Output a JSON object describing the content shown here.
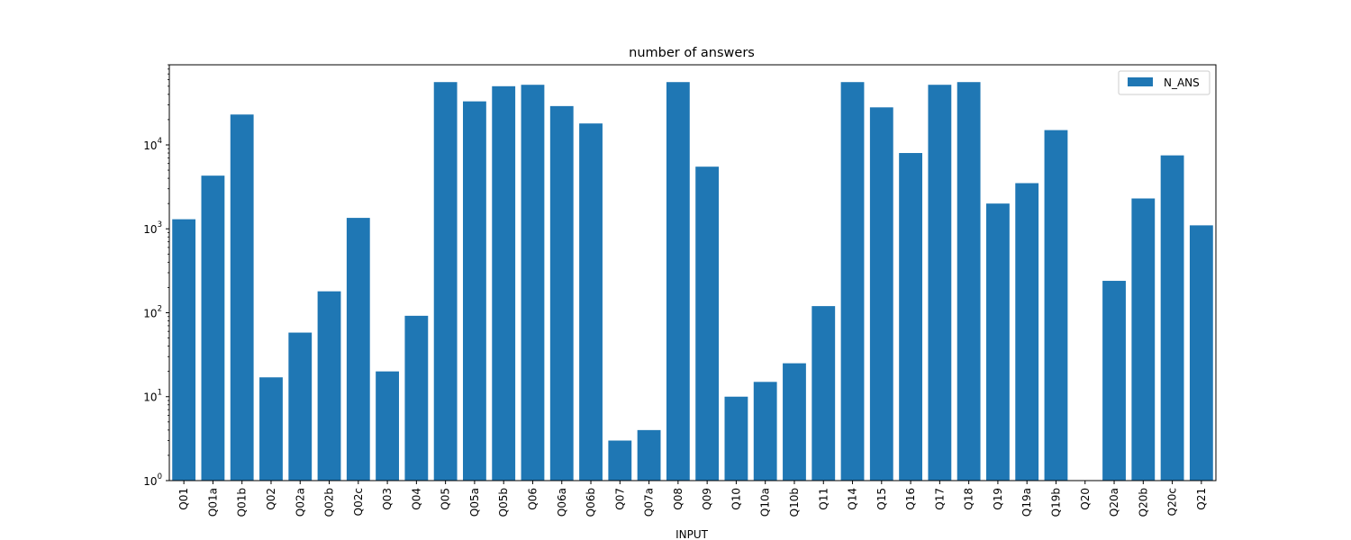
{
  "chart_data": {
    "type": "bar",
    "title": "number of answers",
    "xlabel": "INPUT",
    "ylabel": "",
    "yscale": "log",
    "ylim": [
      1,
      90000
    ],
    "grid": false,
    "legend_position": "top-right",
    "categories": [
      "Q01",
      "Q01a",
      "Q01b",
      "Q02",
      "Q02a",
      "Q02b",
      "Q02c",
      "Q03",
      "Q04",
      "Q05",
      "Q05a",
      "Q05b",
      "Q06",
      "Q06a",
      "Q06b",
      "Q07",
      "Q07a",
      "Q08",
      "Q09",
      "Q10",
      "Q10a",
      "Q10b",
      "Q11",
      "Q14",
      "Q15",
      "Q16",
      "Q17",
      "Q18",
      "Q19",
      "Q19a",
      "Q19b",
      "Q20",
      "Q20a",
      "Q20b",
      "Q20c",
      "Q21"
    ],
    "series": [
      {
        "name": "N_ANS",
        "color": "#1f77b4",
        "values": [
          1300,
          4300,
          23000,
          17,
          58,
          180,
          1350,
          20,
          92,
          56000,
          33000,
          50000,
          52000,
          29000,
          18000,
          3,
          4,
          56000,
          5500,
          10,
          15,
          25,
          120,
          56000,
          28000,
          8000,
          52000,
          56000,
          2000,
          3500,
          15000,
          1,
          240,
          2300,
          7500,
          1100
        ]
      }
    ],
    "y_ticks": [
      {
        "value": 1,
        "base": "10",
        "exp": "0"
      },
      {
        "value": 10,
        "base": "10",
        "exp": "1"
      },
      {
        "value": 100,
        "base": "10",
        "exp": "2"
      },
      {
        "value": 1000,
        "base": "10",
        "exp": "3"
      },
      {
        "value": 10000,
        "base": "10",
        "exp": "4"
      }
    ]
  }
}
